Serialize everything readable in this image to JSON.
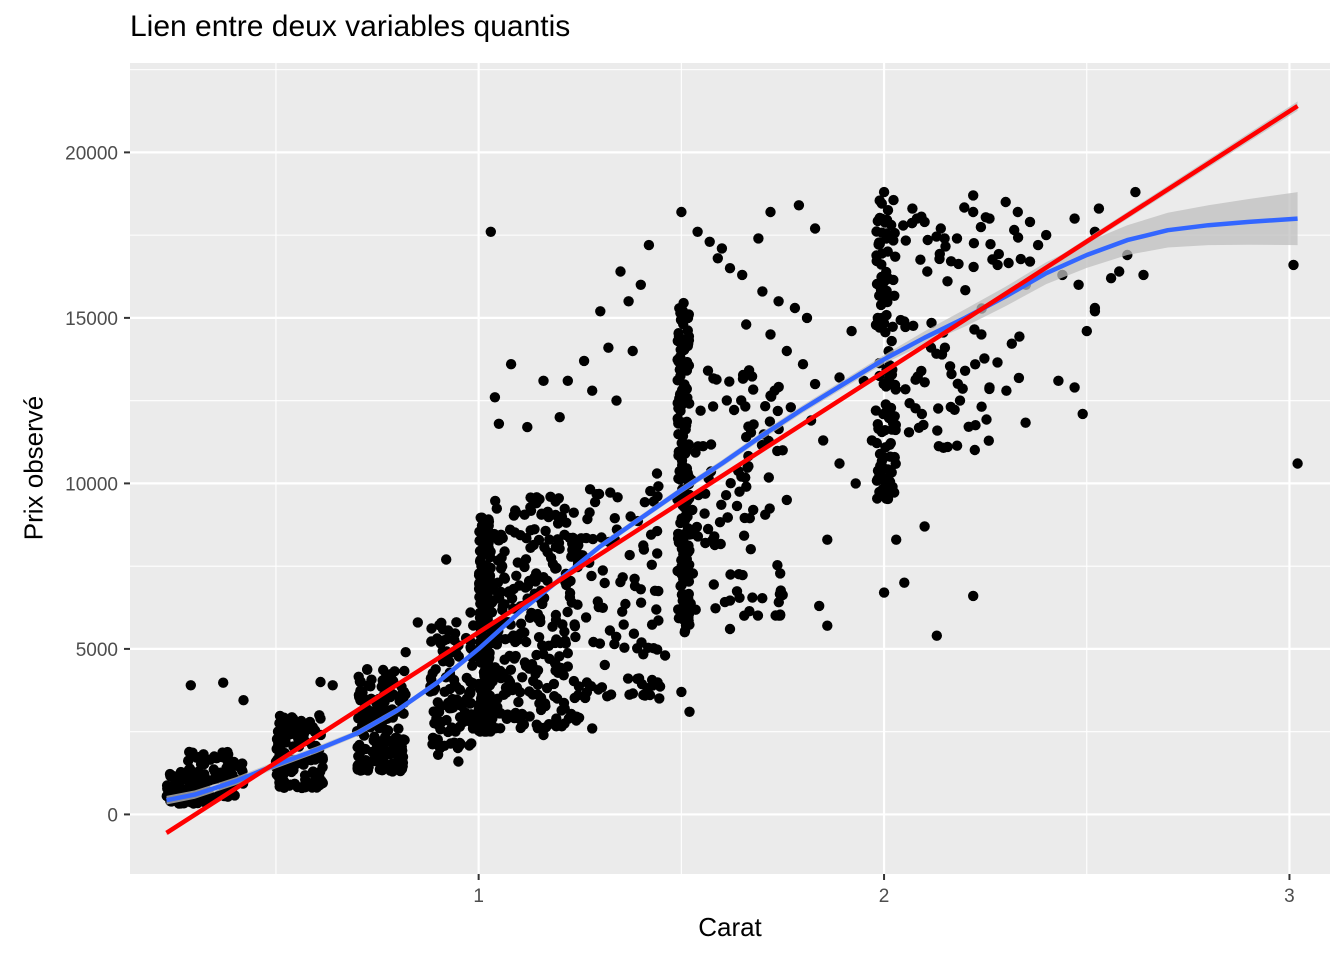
{
  "chart_data": {
    "type": "scatter",
    "title": "Lien entre deux variables quantis",
    "xlabel": "Carat",
    "ylabel": "Prix observé",
    "xlim": [
      0.14,
      3.1
    ],
    "ylim": [
      -1800,
      22700
    ],
    "x_ticks": [
      1,
      2,
      3
    ],
    "x_tick_labels": [
      "1",
      "2",
      "3"
    ],
    "y_ticks": [
      0,
      5000,
      10000,
      15000,
      20000
    ],
    "y_tick_labels": [
      "0",
      "5000",
      "10000",
      "15000",
      "20000"
    ],
    "grid": true,
    "panel_background": "#ebebeb",
    "grid_color": "#ffffff",
    "point_color": "#000000",
    "smooth_color": "#3366ff",
    "ribbon_color": "#bfbfbf",
    "lm_color": "#ff0000",
    "legend": "none",
    "clusters": [
      {
        "x": [
          0.23,
          0.33
        ],
        "y": [
          330,
          1300
        ],
        "n": 110
      },
      {
        "x": [
          0.28,
          0.42
        ],
        "y": [
          500,
          1900
        ],
        "n": 80
      },
      {
        "x": [
          0.5,
          0.62
        ],
        "y": [
          800,
          3000
        ],
        "n": 90
      },
      {
        "x": [
          0.5,
          0.52
        ],
        "y": [
          1200,
          3000
        ],
        "n": 40
      },
      {
        "x": [
          0.7,
          0.82
        ],
        "y": [
          1300,
          4500
        ],
        "n": 160
      },
      {
        "x": [
          0.88,
          0.99
        ],
        "y": [
          2000,
          6000
        ],
        "n": 110
      },
      {
        "x": [
          1.0,
          1.03
        ],
        "y": [
          2500,
          9000
        ],
        "n": 230
      },
      {
        "x": [
          1.03,
          1.25
        ],
        "y": [
          2600,
          9600
        ],
        "n": 270
      },
      {
        "x": [
          1.25,
          1.45
        ],
        "y": [
          3500,
          10000
        ],
        "n": 90
      },
      {
        "x": [
          1.49,
          1.52
        ],
        "y": [
          5500,
          15500
        ],
        "n": 170
      },
      {
        "x": [
          1.52,
          1.75
        ],
        "y": [
          6000,
          13500
        ],
        "n": 100
      },
      {
        "x": [
          1.98,
          2.03
        ],
        "y": [
          9500,
          18600
        ],
        "n": 120
      },
      {
        "x": [
          2.03,
          2.35
        ],
        "y": [
          11000,
          18400
        ],
        "n": 80
      }
    ],
    "points": [
      [
        0.29,
        3900
      ],
      [
        0.37,
        3980
      ],
      [
        0.42,
        3450
      ],
      [
        0.61,
        4000
      ],
      [
        0.64,
        3900
      ],
      [
        0.82,
        4900
      ],
      [
        0.85,
        5800
      ],
      [
        0.92,
        7700
      ],
      [
        0.98,
        6100
      ],
      [
        0.95,
        1600
      ],
      [
        0.9,
        1800
      ],
      [
        1.03,
        17600
      ],
      [
        1.05,
        11800
      ],
      [
        1.04,
        12600
      ],
      [
        1.08,
        13600
      ],
      [
        1.12,
        11700
      ],
      [
        1.16,
        13100
      ],
      [
        1.2,
        12000
      ],
      [
        1.22,
        13100
      ],
      [
        1.26,
        13700
      ],
      [
        1.28,
        12800
      ],
      [
        1.3,
        15200
      ],
      [
        1.32,
        14100
      ],
      [
        1.34,
        12500
      ],
      [
        1.35,
        16400
      ],
      [
        1.37,
        15500
      ],
      [
        1.38,
        14000
      ],
      [
        1.4,
        16000
      ],
      [
        1.42,
        17200
      ],
      [
        1.44,
        10300
      ],
      [
        1.16,
        2400
      ],
      [
        1.28,
        2600
      ],
      [
        1.4,
        6800
      ],
      [
        1.46,
        4800
      ],
      [
        1.5,
        18200
      ],
      [
        1.54,
        17600
      ],
      [
        1.57,
        17300
      ],
      [
        1.59,
        16800
      ],
      [
        1.6,
        17100
      ],
      [
        1.62,
        16500
      ],
      [
        1.65,
        16300
      ],
      [
        1.7,
        15800
      ],
      [
        1.74,
        15500
      ],
      [
        1.78,
        15300
      ],
      [
        1.81,
        15000
      ],
      [
        1.66,
        14800
      ],
      [
        1.72,
        14500
      ],
      [
        1.76,
        14000
      ],
      [
        1.8,
        13600
      ],
      [
        1.83,
        13000
      ],
      [
        1.73,
        12800
      ],
      [
        1.77,
        12300
      ],
      [
        1.82,
        11900
      ],
      [
        1.85,
        11300
      ],
      [
        1.89,
        10600
      ],
      [
        1.93,
        10000
      ],
      [
        1.75,
        11000
      ],
      [
        1.69,
        17400
      ],
      [
        1.72,
        18200
      ],
      [
        1.79,
        18400
      ],
      [
        1.83,
        17700
      ],
      [
        1.86,
        8300
      ],
      [
        1.62,
        5600
      ],
      [
        1.5,
        3700
      ],
      [
        1.52,
        3100
      ],
      [
        1.84,
        6300
      ],
      [
        1.86,
        5700
      ],
      [
        1.76,
        9500
      ],
      [
        1.66,
        11400
      ],
      [
        1.95,
        13100
      ],
      [
        2.07,
        18300
      ],
      [
        2.1,
        17900
      ],
      [
        2.14,
        17700
      ],
      [
        2.18,
        17400
      ],
      [
        2.22,
        18200
      ],
      [
        2.26,
        18000
      ],
      [
        2.3,
        18500
      ],
      [
        2.33,
        18200
      ],
      [
        2.36,
        17900
      ],
      [
        2.4,
        17500
      ],
      [
        2.38,
        17200
      ],
      [
        2.36,
        16700
      ],
      [
        2.28,
        16600
      ],
      [
        2.35,
        16000
      ],
      [
        2.44,
        16300
      ],
      [
        2.48,
        16000
      ],
      [
        2.52,
        15200
      ],
      [
        2.56,
        16200
      ],
      [
        2.6,
        16900
      ],
      [
        2.64,
        16300
      ],
      [
        2.52,
        17600
      ],
      [
        2.47,
        18000
      ],
      [
        2.53,
        18300
      ],
      [
        2.58,
        16400
      ],
      [
        2.26,
        12900
      ],
      [
        2.2,
        13400
      ],
      [
        2.1,
        8700
      ],
      [
        2.13,
        5400
      ],
      [
        2.22,
        6600
      ],
      [
        2.0,
        6700
      ],
      [
        2.05,
        7000
      ],
      [
        2.03,
        8300
      ],
      [
        2.43,
        13100
      ],
      [
        2.47,
        12900
      ],
      [
        2.49,
        12100
      ],
      [
        2.5,
        14600
      ],
      [
        2.52,
        15300
      ],
      [
        2.62,
        18800
      ],
      [
        3.01,
        16600
      ],
      [
        3.02,
        10600
      ],
      [
        1.92,
        14600
      ],
      [
        2.22,
        18700
      ],
      [
        2.0,
        18800
      ],
      [
        1.89,
        13200
      ],
      [
        1.97,
        11300
      ],
      [
        1.98,
        12200
      ],
      [
        2.15,
        14100
      ],
      [
        2.24,
        14500
      ]
    ],
    "loess_fit": [
      [
        0.23,
        430
      ],
      [
        0.3,
        600
      ],
      [
        0.4,
        1000
      ],
      [
        0.5,
        1500
      ],
      [
        0.6,
        1950
      ],
      [
        0.7,
        2450
      ],
      [
        0.8,
        3150
      ],
      [
        0.9,
        4000
      ],
      [
        1.0,
        5000
      ],
      [
        1.1,
        6100
      ],
      [
        1.2,
        7100
      ],
      [
        1.3,
        8100
      ],
      [
        1.4,
        8950
      ],
      [
        1.5,
        9800
      ],
      [
        1.6,
        10600
      ],
      [
        1.7,
        11450
      ],
      [
        1.8,
        12250
      ],
      [
        1.9,
        13000
      ],
      [
        2.0,
        13750
      ],
      [
        2.1,
        14400
      ],
      [
        2.2,
        15000
      ],
      [
        2.3,
        15650
      ],
      [
        2.4,
        16350
      ],
      [
        2.5,
        16900
      ],
      [
        2.6,
        17350
      ],
      [
        2.7,
        17650
      ],
      [
        2.8,
        17800
      ],
      [
        2.9,
        17900
      ],
      [
        3.02,
        18000
      ]
    ],
    "loess_se": [
      [
        0.23,
        130
      ],
      [
        1.0,
        70
      ],
      [
        2.0,
        130
      ],
      [
        2.2,
        260
      ],
      [
        2.4,
        330
      ],
      [
        2.6,
        450
      ],
      [
        2.8,
        600
      ],
      [
        3.02,
        800
      ]
    ],
    "lm_fit": [
      [
        0.23,
        -560
      ],
      [
        3.02,
        21400
      ]
    ],
    "lm_se": [
      [
        0.23,
        60
      ],
      [
        1.5,
        20
      ],
      [
        3.02,
        140
      ]
    ]
  }
}
